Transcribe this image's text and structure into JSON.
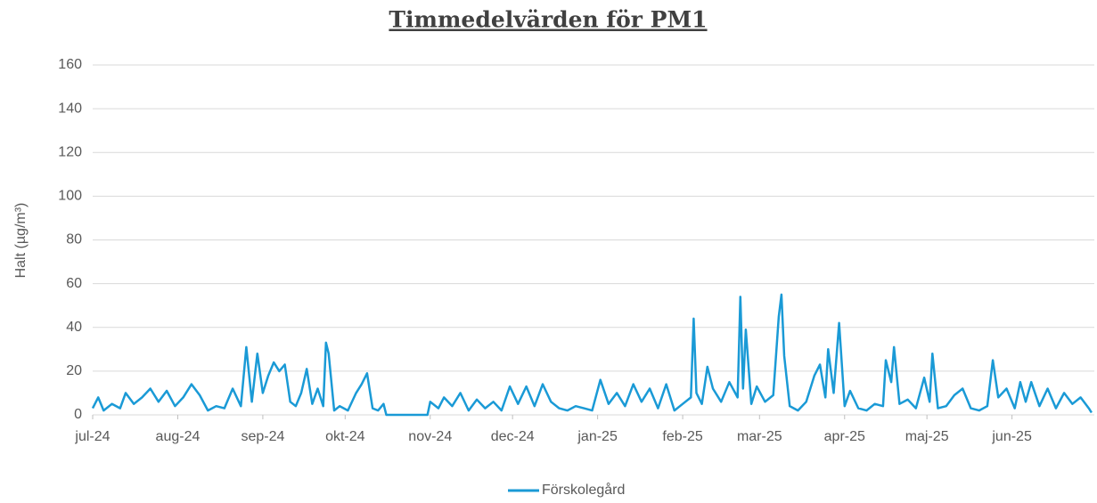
{
  "chart_data": {
    "type": "line",
    "title": "Timmedelvärden för PM1",
    "y_label": "Halt (µg/m³)",
    "x": [
      0,
      2,
      4,
      7,
      10,
      12,
      15,
      18,
      21,
      24,
      27,
      30,
      33,
      36,
      39,
      42,
      45,
      48,
      51,
      54,
      56,
      58,
      60,
      62,
      64,
      66,
      68,
      70,
      72,
      74,
      76,
      78,
      80,
      82,
      84,
      85,
      86,
      88,
      90,
      93,
      96,
      98,
      100,
      102,
      104,
      106,
      107,
      122,
      123,
      126,
      128,
      131,
      134,
      137,
      140,
      143,
      146,
      149,
      152,
      155,
      158,
      161,
      164,
      167,
      170,
      173,
      176,
      179,
      182,
      185,
      188,
      191,
      194,
      197,
      200,
      203,
      206,
      209,
      212,
      215,
      218,
      219,
      220,
      222,
      224,
      226,
      229,
      232,
      235,
      236,
      237,
      238,
      240,
      242,
      245,
      248,
      250,
      251,
      252,
      254,
      257,
      260,
      263,
      265,
      267,
      268,
      270,
      272,
      274,
      276,
      279,
      282,
      285,
      288,
      289,
      291,
      292,
      294,
      297,
      300,
      303,
      305,
      306,
      308,
      311,
      314,
      317,
      320,
      323,
      326,
      328,
      330,
      333,
      336,
      338,
      340,
      342,
      345,
      348,
      351,
      354,
      357,
      360,
      363,
      364
    ],
    "series": [
      {
        "name": "Förskolegård",
        "color": "#1a9ad6",
        "values": [
          3,
          8,
          2,
          5,
          3,
          10,
          5,
          8,
          12,
          6,
          11,
          4,
          8,
          14,
          9,
          2,
          4,
          3,
          12,
          4,
          31,
          6,
          28,
          10,
          18,
          24,
          20,
          23,
          6,
          4,
          10,
          21,
          5,
          12,
          4,
          33,
          28,
          2,
          4,
          2,
          10,
          14,
          19,
          3,
          2,
          5,
          0,
          0,
          6,
          3,
          8,
          4,
          10,
          2,
          7,
          3,
          6,
          2,
          13,
          5,
          13,
          4,
          14,
          6,
          3,
          2,
          4,
          3,
          2,
          16,
          5,
          10,
          4,
          14,
          6,
          12,
          3,
          14,
          2,
          5,
          8,
          44,
          10,
          5,
          22,
          12,
          6,
          15,
          8,
          54,
          12,
          39,
          5,
          13,
          6,
          9,
          45,
          55,
          27,
          4,
          2,
          6,
          18,
          23,
          8,
          30,
          10,
          42,
          4,
          11,
          3,
          2,
          5,
          4,
          25,
          15,
          31,
          5,
          7,
          3,
          17,
          6,
          28,
          3,
          4,
          9,
          12,
          3,
          2,
          4,
          25,
          8,
          12,
          3,
          15,
          6,
          15,
          4,
          12,
          3,
          10,
          5,
          8,
          3,
          1
        ]
      }
    ],
    "xlim": [
      0,
      365
    ],
    "xticks": [
      {
        "value": 0,
        "label": "jul-24"
      },
      {
        "value": 31,
        "label": "aug-24"
      },
      {
        "value": 62,
        "label": "sep-24"
      },
      {
        "value": 92,
        "label": "okt-24"
      },
      {
        "value": 123,
        "label": "nov-24"
      },
      {
        "value": 153,
        "label": "dec-24"
      },
      {
        "value": 184,
        "label": "jan-25"
      },
      {
        "value": 215,
        "label": "feb-25"
      },
      {
        "value": 243,
        "label": "mar-25"
      },
      {
        "value": 274,
        "label": "apr-25"
      },
      {
        "value": 304,
        "label": "maj-25"
      },
      {
        "value": 335,
        "label": "jun-25"
      }
    ],
    "ylim": [
      0,
      160
    ],
    "yticks": [
      0,
      20,
      40,
      60,
      80,
      100,
      120,
      140,
      160
    ],
    "grid": true
  }
}
